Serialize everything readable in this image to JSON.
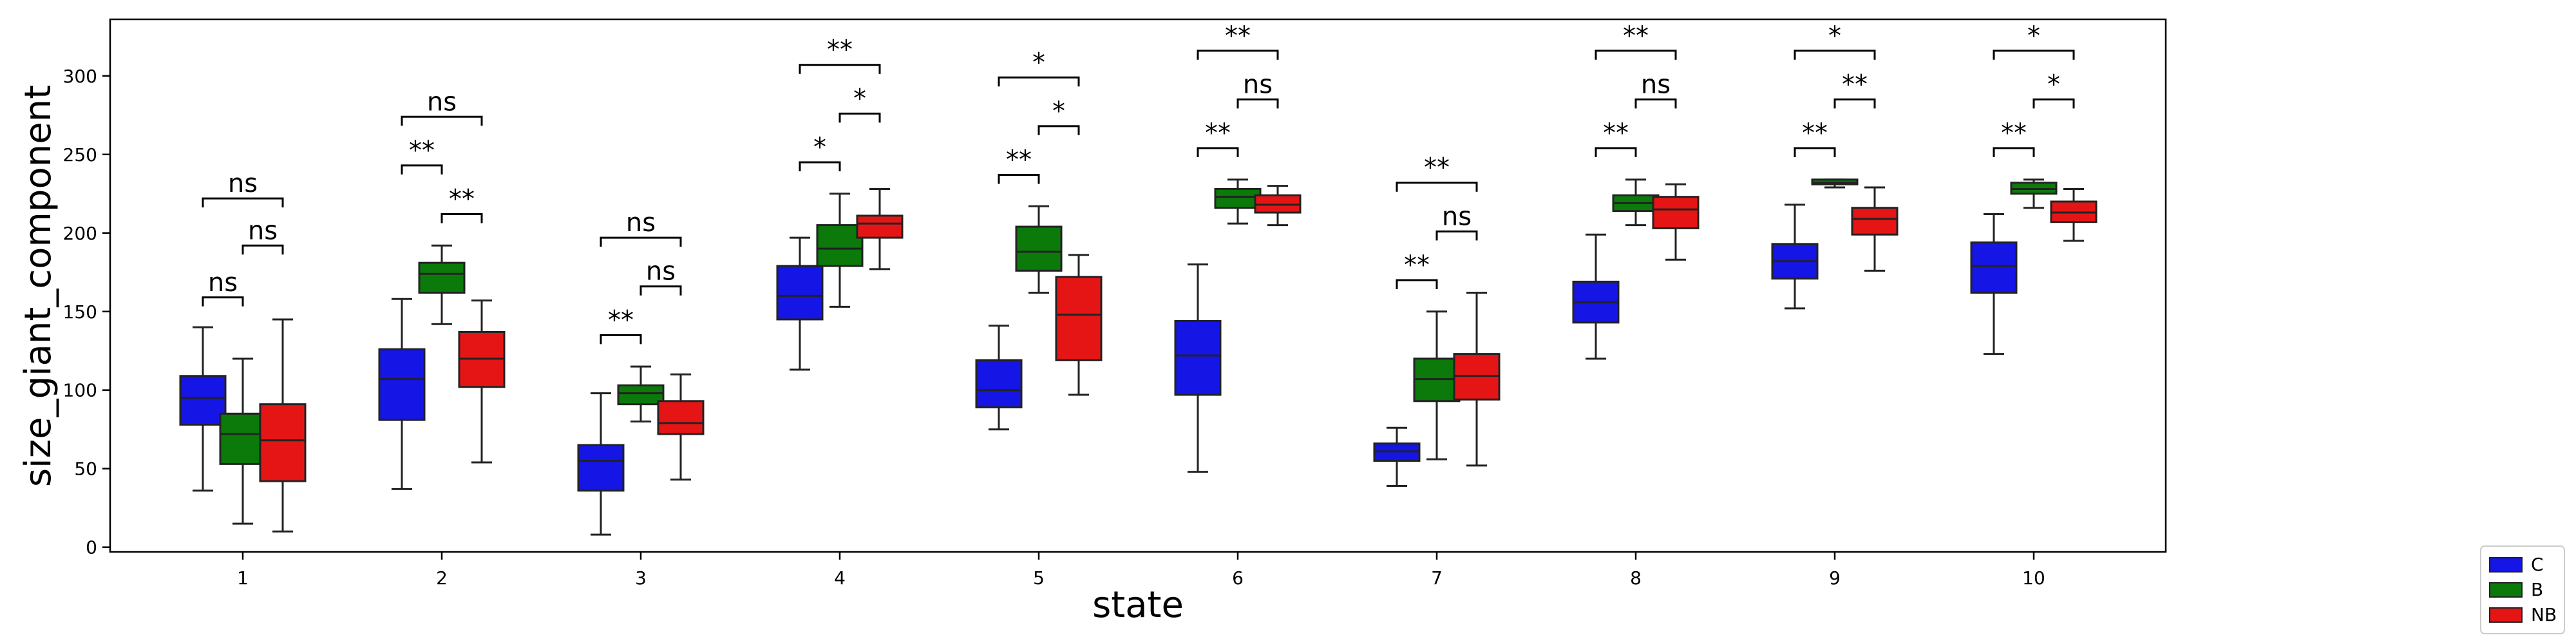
{
  "chart_data": {
    "type": "box",
    "xlabel": "state",
    "ylabel": "size_giant_component",
    "ylim": [
      -3,
      336
    ],
    "yticks": [
      0,
      50,
      100,
      150,
      200,
      250,
      300
    ],
    "categories": [
      "1",
      "2",
      "3",
      "4",
      "5",
      "6",
      "7",
      "8",
      "9",
      "10"
    ],
    "legend": {
      "placement": "lower-right-outside"
    },
    "series": [
      {
        "name": "C",
        "color": "#1515e6",
        "boxes": [
          {
            "min": 36,
            "q1": 78,
            "median": 95,
            "q3": 109,
            "max": 140
          },
          {
            "min": 37,
            "q1": 81,
            "median": 107,
            "q3": 126,
            "max": 158
          },
          {
            "min": 8,
            "q1": 36,
            "median": 55,
            "q3": 65,
            "max": 98
          },
          {
            "min": 113,
            "q1": 145,
            "median": 160,
            "q3": 179,
            "max": 197
          },
          {
            "min": 75,
            "q1": 89,
            "median": 100,
            "q3": 119,
            "max": 141
          },
          {
            "min": 48,
            "q1": 97,
            "median": 122,
            "q3": 144,
            "max": 180
          },
          {
            "min": 39,
            "q1": 55,
            "median": 61,
            "q3": 66,
            "max": 76
          },
          {
            "min": 120,
            "q1": 143,
            "median": 156,
            "q3": 169,
            "max": 199
          },
          {
            "min": 152,
            "q1": 171,
            "median": 182,
            "q3": 193,
            "max": 218
          },
          {
            "min": 123,
            "q1": 162,
            "median": 179,
            "q3": 194,
            "max": 212
          }
        ]
      },
      {
        "name": "B",
        "color": "#0b7a0b",
        "boxes": [
          {
            "min": 15,
            "q1": 53,
            "median": 72,
            "q3": 85,
            "max": 120
          },
          {
            "min": 142,
            "q1": 162,
            "median": 174,
            "q3": 181,
            "max": 192
          },
          {
            "min": 80,
            "q1": 91,
            "median": 98,
            "q3": 103,
            "max": 115
          },
          {
            "min": 153,
            "q1": 179,
            "median": 190,
            "q3": 205,
            "max": 225
          },
          {
            "min": 162,
            "q1": 176,
            "median": 188,
            "q3": 204,
            "max": 217
          },
          {
            "min": 206,
            "q1": 216,
            "median": 223,
            "q3": 228,
            "max": 234
          },
          {
            "min": 56,
            "q1": 93,
            "median": 107,
            "q3": 120,
            "max": 150
          },
          {
            "min": 205,
            "q1": 214,
            "median": 219,
            "q3": 224,
            "max": 234
          },
          {
            "min": 229,
            "q1": 231,
            "median": 232,
            "q3": 234,
            "max": 234
          },
          {
            "min": 216,
            "q1": 225,
            "median": 228,
            "q3": 232,
            "max": 234
          }
        ]
      },
      {
        "name": "NB",
        "color": "#e61515",
        "boxes": [
          {
            "min": 10,
            "q1": 42,
            "median": 68,
            "q3": 91,
            "max": 145
          },
          {
            "min": 54,
            "q1": 102,
            "median": 120,
            "q3": 137,
            "max": 157
          },
          {
            "min": 43,
            "q1": 72,
            "median": 79,
            "q3": 93,
            "max": 110
          },
          {
            "min": 177,
            "q1": 197,
            "median": 206,
            "q3": 211,
            "max": 228
          },
          {
            "min": 97,
            "q1": 119,
            "median": 148,
            "q3": 172,
            "max": 186
          },
          {
            "min": 205,
            "q1": 213,
            "median": 218,
            "q3": 224,
            "max": 230
          },
          {
            "min": 52,
            "q1": 94,
            "median": 109,
            "q3": 123,
            "max": 162
          },
          {
            "min": 183,
            "q1": 203,
            "median": 215,
            "q3": 223,
            "max": 231
          },
          {
            "min": 176,
            "q1": 199,
            "median": 209,
            "q3": 216,
            "max": 229
          },
          {
            "min": 195,
            "q1": 207,
            "median": 213,
            "q3": 220,
            "max": 228
          }
        ]
      }
    ],
    "significance": [
      {
        "pairs": [
          [
            "C",
            "B"
          ],
          [
            "B",
            "NB"
          ],
          [
            "C",
            "NB"
          ]
        ],
        "labels": [
          "ns",
          "ns",
          "ns"
        ],
        "levels": [
          159,
          192,
          222
        ]
      },
      {
        "pairs": [
          [
            "C",
            "B"
          ],
          [
            "B",
            "NB"
          ],
          [
            "C",
            "NB"
          ]
        ],
        "labels": [
          "**",
          "**",
          "ns"
        ],
        "levels": [
          243,
          212,
          274
        ]
      },
      {
        "pairs": [
          [
            "C",
            "B"
          ],
          [
            "B",
            "NB"
          ],
          [
            "C",
            "NB"
          ]
        ],
        "labels": [
          "**",
          "ns",
          "ns"
        ],
        "levels": [
          135,
          166,
          197
        ]
      },
      {
        "pairs": [
          [
            "C",
            "B"
          ],
          [
            "B",
            "NB"
          ],
          [
            "C",
            "NB"
          ]
        ],
        "labels": [
          "*",
          "*",
          "**"
        ],
        "levels": [
          245,
          276,
          307
        ]
      },
      {
        "pairs": [
          [
            "C",
            "B"
          ],
          [
            "B",
            "NB"
          ],
          [
            "C",
            "NB"
          ]
        ],
        "labels": [
          "**",
          "*",
          "*"
        ],
        "levels": [
          237,
          268,
          299
        ]
      },
      {
        "pairs": [
          [
            "C",
            "B"
          ],
          [
            "B",
            "NB"
          ],
          [
            "C",
            "NB"
          ]
        ],
        "labels": [
          "**",
          "ns",
          "**"
        ],
        "levels": [
          254,
          285,
          316
        ]
      },
      {
        "pairs": [
          [
            "C",
            "B"
          ],
          [
            "B",
            "NB"
          ],
          [
            "C",
            "NB"
          ]
        ],
        "labels": [
          "**",
          "ns",
          "**"
        ],
        "levels": [
          170,
          201,
          232
        ]
      },
      {
        "pairs": [
          [
            "C",
            "B"
          ],
          [
            "B",
            "NB"
          ],
          [
            "C",
            "NB"
          ]
        ],
        "labels": [
          "**",
          "ns",
          "**"
        ],
        "levels": [
          254,
          285,
          316
        ]
      },
      {
        "pairs": [
          [
            "C",
            "B"
          ],
          [
            "B",
            "NB"
          ],
          [
            "C",
            "NB"
          ]
        ],
        "labels": [
          "**",
          "**",
          "*"
        ],
        "levels": [
          254,
          285,
          316
        ]
      },
      {
        "pairs": [
          [
            "C",
            "B"
          ],
          [
            "B",
            "NB"
          ],
          [
            "C",
            "NB"
          ]
        ],
        "labels": [
          "**",
          "*",
          "*"
        ],
        "levels": [
          254,
          285,
          316
        ]
      }
    ]
  }
}
